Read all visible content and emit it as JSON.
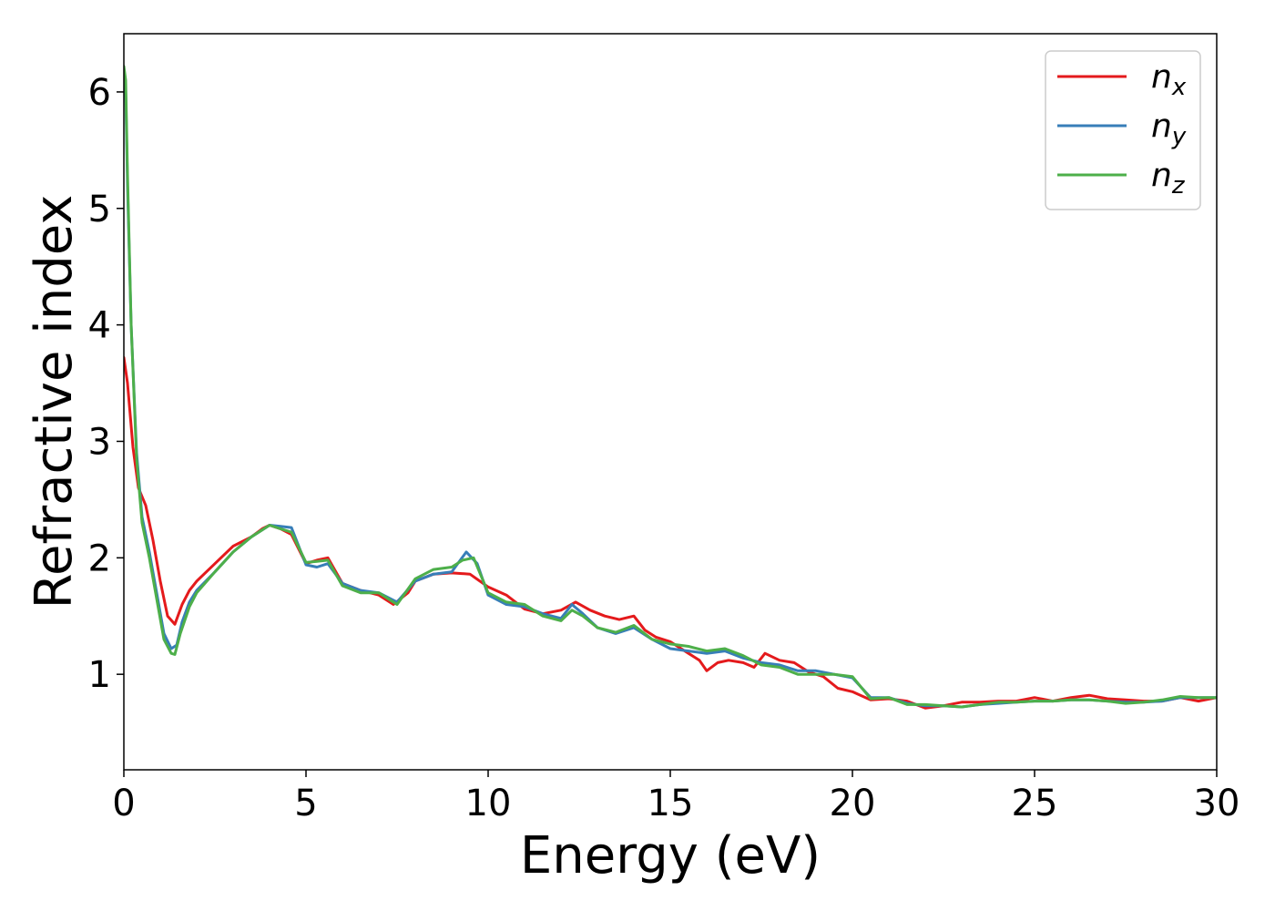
{
  "chart_data": {
    "type": "line",
    "title": "",
    "xlabel": "Energy (eV)",
    "ylabel": "Refractive index",
    "xlim": [
      0,
      30
    ],
    "ylim": [
      0.18,
      6.5
    ],
    "xticks": [
      0,
      5,
      10,
      15,
      20,
      25,
      30
    ],
    "yticks": [
      1,
      2,
      3,
      4,
      5,
      6
    ],
    "grid": false,
    "legend_position": "top-right",
    "series": [
      {
        "name": "n",
        "subscript": "x",
        "color": "#e41a1c",
        "x": [
          0,
          0.1,
          0.25,
          0.4,
          0.6,
          0.8,
          1.0,
          1.2,
          1.4,
          1.6,
          1.8,
          2.0,
          2.5,
          3.0,
          3.5,
          3.8,
          4.0,
          4.3,
          4.6,
          5.0,
          5.3,
          5.6,
          6.0,
          6.5,
          7.0,
          7.4,
          7.8,
          8.0,
          8.5,
          9.0,
          9.5,
          10.0,
          10.5,
          11.0,
          11.5,
          12.0,
          12.4,
          12.8,
          13.2,
          13.6,
          14.0,
          14.3,
          14.6,
          15.0,
          15.5,
          15.8,
          16.0,
          16.3,
          16.6,
          17.0,
          17.3,
          17.6,
          18.0,
          18.4,
          18.8,
          19.2,
          19.6,
          20.0,
          20.5,
          21.0,
          21.5,
          22.0,
          22.5,
          23.0,
          23.5,
          24.0,
          24.5,
          25.0,
          25.5,
          26.0,
          26.5,
          27.0,
          27.5,
          28.0,
          28.5,
          29.0,
          29.5,
          30.0
        ],
        "y": [
          3.72,
          3.5,
          2.95,
          2.6,
          2.45,
          2.15,
          1.8,
          1.5,
          1.43,
          1.6,
          1.72,
          1.8,
          1.95,
          2.1,
          2.18,
          2.25,
          2.28,
          2.25,
          2.2,
          1.95,
          1.98,
          2.0,
          1.78,
          1.72,
          1.68,
          1.6,
          1.7,
          1.8,
          1.86,
          1.87,
          1.86,
          1.75,
          1.68,
          1.56,
          1.52,
          1.55,
          1.62,
          1.55,
          1.5,
          1.47,
          1.5,
          1.38,
          1.32,
          1.28,
          1.18,
          1.12,
          1.03,
          1.1,
          1.12,
          1.1,
          1.06,
          1.18,
          1.12,
          1.1,
          1.02,
          0.98,
          0.88,
          0.85,
          0.78,
          0.79,
          0.77,
          0.71,
          0.73,
          0.76,
          0.76,
          0.77,
          0.77,
          0.8,
          0.77,
          0.8,
          0.82,
          0.79,
          0.78,
          0.77,
          0.77,
          0.8,
          0.77,
          0.8
        ]
      },
      {
        "name": "n",
        "subscript": "y",
        "color": "#377eb8",
        "x": [
          0,
          0.05,
          0.1,
          0.2,
          0.35,
          0.5,
          0.7,
          0.9,
          1.1,
          1.3,
          1.45,
          1.6,
          1.8,
          2.0,
          2.5,
          3.0,
          3.5,
          4.0,
          4.3,
          4.6,
          5.0,
          5.3,
          5.6,
          6.0,
          6.5,
          7.0,
          7.5,
          8.0,
          8.5,
          9.0,
          9.4,
          9.7,
          10.0,
          10.5,
          11.0,
          11.5,
          12.0,
          12.3,
          12.6,
          13.0,
          13.5,
          14.0,
          14.5,
          15.0,
          15.5,
          16.0,
          16.5,
          17.0,
          17.5,
          18.0,
          18.5,
          19.0,
          19.5,
          20.0,
          20.5,
          21.0,
          21.5,
          22.0,
          22.5,
          23.0,
          23.5,
          24.0,
          24.5,
          25.0,
          25.5,
          26.0,
          26.5,
          27.0,
          27.5,
          28.0,
          28.5,
          29.0,
          29.5,
          30.0
        ],
        "y": [
          6.2,
          6.0,
          5.2,
          4.0,
          2.9,
          2.35,
          2.05,
          1.7,
          1.35,
          1.22,
          1.25,
          1.45,
          1.62,
          1.72,
          1.88,
          2.05,
          2.18,
          2.28,
          2.27,
          2.26,
          1.94,
          1.92,
          1.95,
          1.78,
          1.72,
          1.7,
          1.62,
          1.8,
          1.86,
          1.88,
          2.05,
          1.95,
          1.68,
          1.6,
          1.58,
          1.52,
          1.48,
          1.6,
          1.52,
          1.4,
          1.35,
          1.4,
          1.3,
          1.22,
          1.2,
          1.18,
          1.2,
          1.14,
          1.1,
          1.08,
          1.03,
          1.03,
          1.0,
          0.97,
          0.8,
          0.8,
          0.75,
          0.73,
          0.73,
          0.72,
          0.74,
          0.75,
          0.76,
          0.77,
          0.77,
          0.78,
          0.78,
          0.77,
          0.76,
          0.76,
          0.77,
          0.8,
          0.8,
          0.8
        ]
      },
      {
        "name": "n",
        "subscript": "z",
        "color": "#4daf4a",
        "x": [
          0,
          0.05,
          0.1,
          0.2,
          0.35,
          0.5,
          0.7,
          0.9,
          1.1,
          1.3,
          1.4,
          1.55,
          1.8,
          2.0,
          2.5,
          3.0,
          3.5,
          4.0,
          4.3,
          4.6,
          5.0,
          5.3,
          5.6,
          6.0,
          6.5,
          7.0,
          7.5,
          8.0,
          8.5,
          9.0,
          9.3,
          9.6,
          10.0,
          10.5,
          11.0,
          11.5,
          12.0,
          12.3,
          12.6,
          13.0,
          13.5,
          14.0,
          14.5,
          15.0,
          15.5,
          16.0,
          16.5,
          17.0,
          17.5,
          18.0,
          18.5,
          19.0,
          19.5,
          20.0,
          20.5,
          21.0,
          21.5,
          22.0,
          22.5,
          23.0,
          23.5,
          24.0,
          24.5,
          25.0,
          25.5,
          26.0,
          26.5,
          27.0,
          27.5,
          28.0,
          28.5,
          29.0,
          29.5,
          30.0
        ],
        "y": [
          6.22,
          6.1,
          5.3,
          4.0,
          2.85,
          2.3,
          2.0,
          1.65,
          1.3,
          1.18,
          1.17,
          1.35,
          1.58,
          1.7,
          1.88,
          2.05,
          2.18,
          2.28,
          2.25,
          2.22,
          1.96,
          1.97,
          1.98,
          1.76,
          1.7,
          1.7,
          1.6,
          1.82,
          1.9,
          1.92,
          1.98,
          2.0,
          1.7,
          1.62,
          1.6,
          1.5,
          1.46,
          1.55,
          1.5,
          1.4,
          1.36,
          1.42,
          1.3,
          1.26,
          1.24,
          1.2,
          1.22,
          1.16,
          1.08,
          1.06,
          1.0,
          1.0,
          1.0,
          0.98,
          0.79,
          0.8,
          0.74,
          0.74,
          0.73,
          0.72,
          0.74,
          0.76,
          0.76,
          0.77,
          0.77,
          0.78,
          0.78,
          0.77,
          0.75,
          0.76,
          0.78,
          0.81,
          0.8,
          0.8
        ]
      }
    ]
  }
}
